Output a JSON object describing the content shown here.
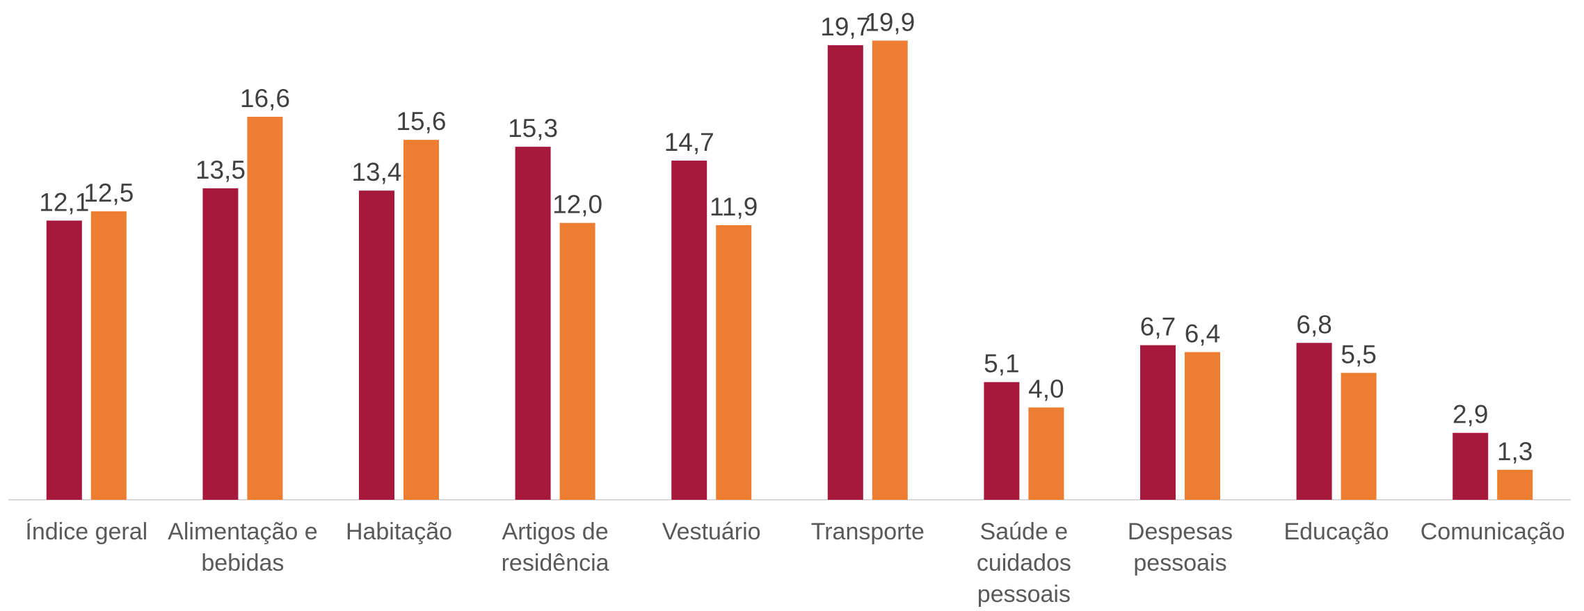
{
  "chart_data": {
    "type": "bar",
    "categories": [
      "Índice geral",
      "Alimentação e bebidas",
      "Habitação",
      "Artigos de residência",
      "Vestuário",
      "Transporte",
      "Saúde e cuidados pessoais",
      "Despesas pessoais",
      "Educação",
      "Comunicação"
    ],
    "series": [
      {
        "color": "#a6193c",
        "values": [
          12.1,
          13.5,
          13.4,
          15.3,
          14.7,
          19.7,
          5.1,
          6.7,
          6.8,
          2.9
        ],
        "value_labels": [
          "12,1",
          "13,5",
          "13,4",
          "15,3",
          "14,7",
          "19,7",
          "5,1",
          "6,7",
          "6,8",
          "2,9"
        ]
      },
      {
        "color": "#ed7d31",
        "values": [
          12.5,
          16.6,
          15.6,
          12.0,
          11.9,
          19.9,
          4.0,
          6.4,
          5.5,
          1.3
        ],
        "value_labels": [
          "12,5",
          "16,6",
          "15,6",
          "12,0",
          "11,9",
          "19,9",
          "4,0",
          "6,4",
          "5,5",
          "1,3"
        ]
      }
    ],
    "ylim": [
      0,
      21.6
    ]
  }
}
